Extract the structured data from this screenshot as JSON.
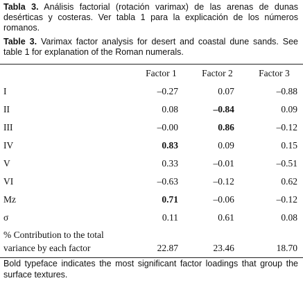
{
  "caption": {
    "es": {
      "label": "Tabla 3.",
      "text": "Análisis factorial (rotación varimax) de las arenas de dunas desérticas y costeras. Ver tabla 1 para la explicación de los números romanos."
    },
    "en": {
      "label": "Table 3.",
      "text": "Varimax factor analysis for desert and coastal dune sands. See table 1 for explanation of the Roman numerals."
    }
  },
  "table": {
    "header": [
      "Factor 1",
      "Factor 2",
      "Factor 3"
    ],
    "rows": [
      {
        "label": "I",
        "cells": [
          {
            "text": "–0.27"
          },
          {
            "text": "0.07"
          },
          {
            "text": "–0.88"
          }
        ]
      },
      {
        "label": "II",
        "cells": [
          {
            "text": "0.08"
          },
          {
            "text": "–0.84",
            "bold": true
          },
          {
            "text": "0.09"
          }
        ]
      },
      {
        "label": "III",
        "cells": [
          {
            "text": "–0.00"
          },
          {
            "text": "0.86",
            "bold": true
          },
          {
            "text": "–0.12"
          }
        ]
      },
      {
        "label": "IV",
        "cells": [
          {
            "text": "0.83",
            "bold": true
          },
          {
            "text": "0.09"
          },
          {
            "text": "0.15"
          }
        ]
      },
      {
        "label": "V",
        "cells": [
          {
            "text": "0.33"
          },
          {
            "text": "–0.01"
          },
          {
            "text": "–0.51"
          }
        ]
      },
      {
        "label": "VI",
        "cells": [
          {
            "text": "–0.63"
          },
          {
            "text": "–0.12"
          },
          {
            "text": "0.62"
          }
        ]
      },
      {
        "label": "Mz",
        "cells": [
          {
            "text": "0.71",
            "bold": true
          },
          {
            "text": "–0.06"
          },
          {
            "text": "–0.12"
          }
        ]
      },
      {
        "label": "σ",
        "cells": [
          {
            "text": "0.11"
          },
          {
            "text": "0.61"
          },
          {
            "text": "0.08"
          }
        ]
      },
      {
        "label": "% Contribution to the total variance by each factor",
        "cells": [
          {
            "text": "22.87"
          },
          {
            "text": "23.46"
          },
          {
            "text": "18.70"
          }
        ]
      }
    ]
  },
  "footnote": "Bold typeface indicates the most significant factor loadings that group the surface textures."
}
